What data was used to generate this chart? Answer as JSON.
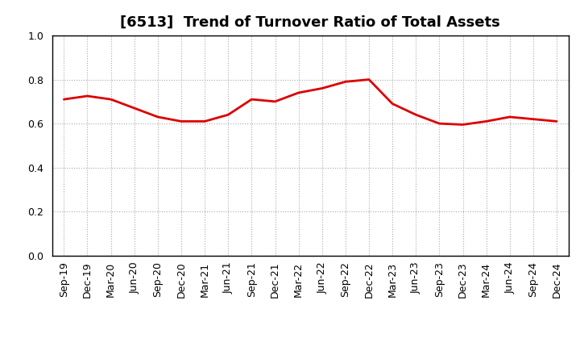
{
  "title": "[6513]  Trend of Turnover Ratio of Total Assets",
  "x_labels": [
    "Sep-19",
    "Dec-19",
    "Mar-20",
    "Jun-20",
    "Sep-20",
    "Dec-20",
    "Mar-21",
    "Jun-21",
    "Sep-21",
    "Dec-21",
    "Mar-22",
    "Jun-22",
    "Sep-22",
    "Dec-22",
    "Mar-23",
    "Jun-23",
    "Sep-23",
    "Dec-23",
    "Mar-24",
    "Jun-24",
    "Sep-24",
    "Dec-24"
  ],
  "y_values": [
    0.71,
    0.725,
    0.71,
    0.67,
    0.63,
    0.61,
    0.61,
    0.64,
    0.71,
    0.7,
    0.74,
    0.76,
    0.79,
    0.8,
    0.69,
    0.64,
    0.6,
    0.595,
    0.61,
    0.63,
    0.62,
    0.61
  ],
  "line_color": "#dd0000",
  "line_width": 2.0,
  "ylim": [
    0.0,
    1.0
  ],
  "yticks": [
    0.0,
    0.2,
    0.4,
    0.6,
    0.8,
    1.0
  ],
  "grid_color": "#aaaaaa",
  "grid_style": "dotted",
  "bg_color": "#ffffff",
  "plot_bg_color": "#ffffff",
  "title_fontsize": 13,
  "tick_fontsize": 9,
  "title_color": "#000000"
}
